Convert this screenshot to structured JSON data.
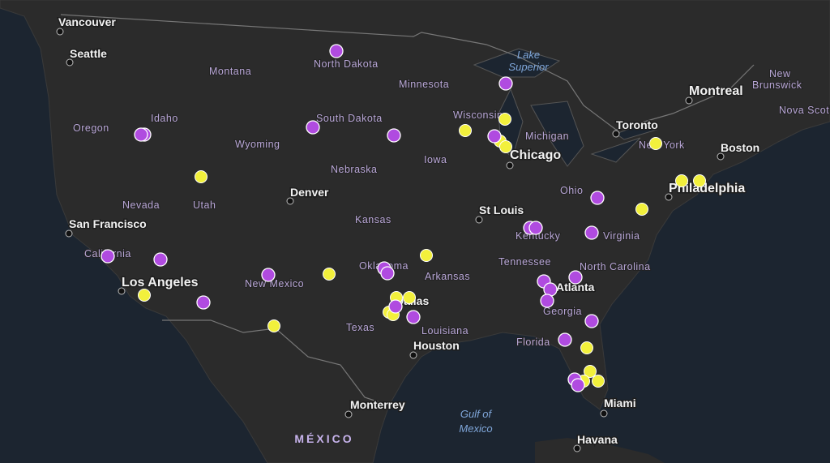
{
  "map": {
    "cities": [
      {
        "name": "Vancouver"
      },
      {
        "name": "Seattle"
      },
      {
        "name": "San Francisco"
      },
      {
        "name": "Los Angeles"
      },
      {
        "name": "Denver"
      },
      {
        "name": "St Louis"
      },
      {
        "name": "Chicago"
      },
      {
        "name": "Dallas"
      },
      {
        "name": "Houston"
      },
      {
        "name": "Monterrey"
      },
      {
        "name": "Miami"
      },
      {
        "name": "Havana"
      },
      {
        "name": "Montreal"
      },
      {
        "name": "Toronto"
      },
      {
        "name": "Boston"
      },
      {
        "name": "Philadelphia"
      },
      {
        "name": "Atlanta"
      }
    ],
    "states": [
      "Montana",
      "North Dakota",
      "Minnesota",
      "Idaho",
      "Oregon",
      "Wyoming",
      "South Dakota",
      "Wisconsin",
      "Michigan",
      "Iowa",
      "Nebraska",
      "Nevada",
      "Utah",
      "Kansas",
      "Ohio",
      "New York",
      "Kentucky",
      "Virginia",
      "California",
      "New Mexico",
      "Oklahoma",
      "Arkansas",
      "Tennessee",
      "North Carolina",
      "Georgia",
      "Texas",
      "Louisiana",
      "Florida",
      "New",
      "Brunswick",
      "Nova Scotia"
    ],
    "water": [
      "Lake",
      "Superior",
      "Gulf of",
      "Mexico"
    ],
    "country": "MÉXICO"
  }
}
